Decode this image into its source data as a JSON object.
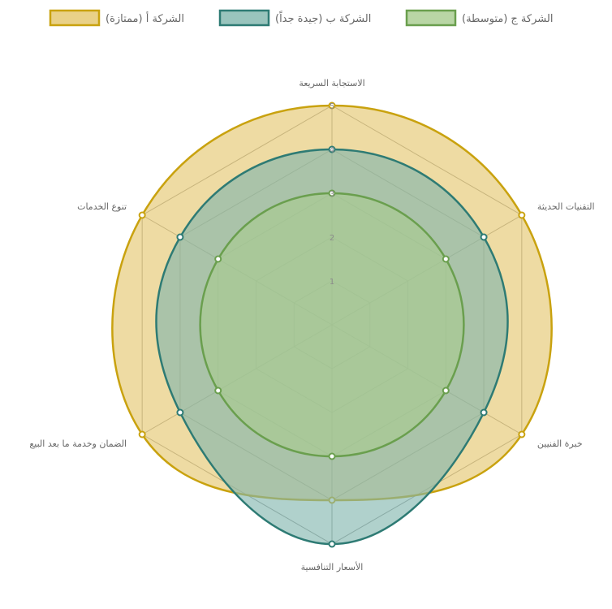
{
  "chart_data": {
    "type": "radar",
    "axes": [
      "الاستجابة السريعة",
      "التقنيات الحديثة",
      "خبرة الفنيين",
      "الأسعار التنافسية",
      "الضمان وخدمة ما بعد البيع",
      "تنوع الخدمات"
    ],
    "r_range": [
      0,
      5
    ],
    "ticks": [
      "1",
      "2",
      "3",
      "4",
      "5"
    ],
    "grid": true,
    "legend_position": "top",
    "series": [
      {
        "name": "الشركة أ (ممتازة)",
        "values": [
          5,
          5,
          5,
          4,
          5,
          5
        ],
        "color": "#c9a20f",
        "fill": "#e3c56a"
      },
      {
        "name": "الشركة ب (جيدة جداً)",
        "values": [
          4,
          4,
          4,
          5,
          4,
          4
        ],
        "color": "#2e7b74",
        "fill": "#7fb5ad"
      },
      {
        "name": "الشركة ج (متوسطة)",
        "values": [
          3,
          3,
          3,
          3,
          3,
          3
        ],
        "color": "#6a9f4e",
        "fill": "#a8cc8f"
      }
    ]
  }
}
